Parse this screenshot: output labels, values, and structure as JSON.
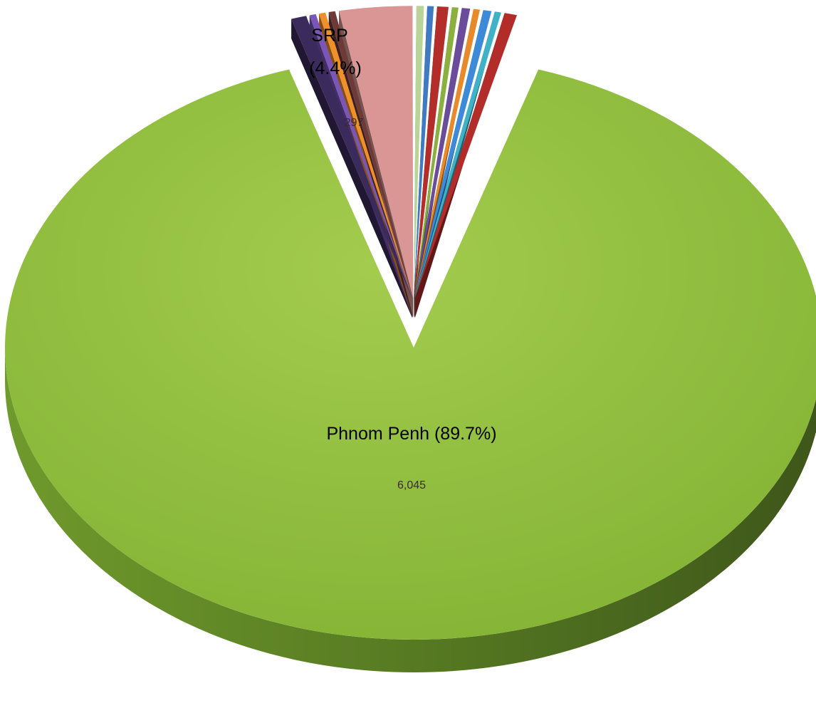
{
  "chart_data": {
    "type": "pie",
    "style": "3d-exploded",
    "slices": [
      {
        "label": "Phnom Penh",
        "percent": "89.7%",
        "value": 6045,
        "value_text": "6,045",
        "color": "#8fbf3c"
      },
      {
        "label": "",
        "value": 1.5,
        "color": "#3b2a5c"
      },
      {
        "label": "",
        "value": 0.2,
        "color": "#7a56b8"
      },
      {
        "label": "",
        "value": 0.2,
        "color": "#f0902a"
      },
      {
        "label": "",
        "value": 0.2,
        "color": "#6e3a38"
      },
      {
        "label": "SRP",
        "percent": "4.4%",
        "value": 297,
        "value_text": "297",
        "color": "#d99695"
      },
      {
        "label": "",
        "value": 0.3,
        "color": "#b9d496"
      },
      {
        "label": "",
        "value": 0.2,
        "color": "#3f7ac2"
      },
      {
        "label": "",
        "value": 0.8,
        "color": "#b32e2b"
      },
      {
        "label": "",
        "value": 0.2,
        "color": "#8cb040"
      },
      {
        "label": "",
        "value": 0.4,
        "color": "#6a4c9a"
      },
      {
        "label": "",
        "value": 0.2,
        "color": "#e8892a"
      },
      {
        "label": "",
        "value": 0.4,
        "color": "#3d8ad8"
      },
      {
        "label": "",
        "value": 0.2,
        "color": "#3fb2c8"
      },
      {
        "label": "",
        "value": 1.0,
        "color": "#b22c2a"
      }
    ],
    "legend": "none"
  }
}
